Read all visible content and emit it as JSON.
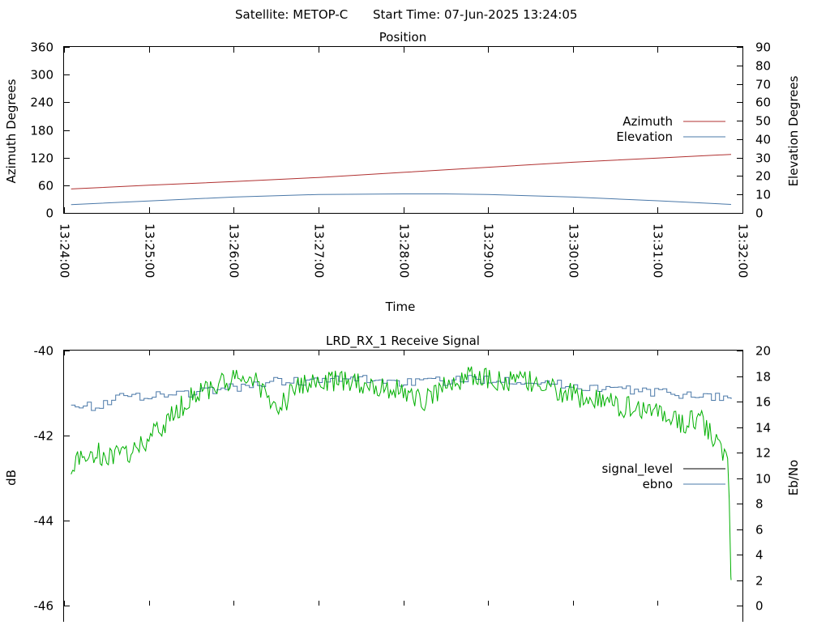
{
  "header": {
    "satellite_label": "Satellite: METOP-C",
    "start_time_label": "Start Time: 07-Jun-2025 13:24:05"
  },
  "chart_data": [
    {
      "type": "line",
      "title": "Position",
      "xlabel": "Time",
      "ylabel": "Azimuth Degrees",
      "y2label": "Elevation Degrees",
      "xlim": [
        "13:24:00",
        "13:32:00"
      ],
      "xticks": [
        "13:24:00",
        "13:25:00",
        "13:26:00",
        "13:27:00",
        "13:28:00",
        "13:29:00",
        "13:30:00",
        "13:31:00",
        "13:32:00"
      ],
      "ylim": [
        0,
        360
      ],
      "yticks": [
        0,
        60,
        120,
        180,
        240,
        300,
        360
      ],
      "y2lim": [
        0,
        90
      ],
      "y2ticks": [
        0,
        10,
        20,
        30,
        40,
        50,
        60,
        70,
        80,
        90
      ],
      "legend_position": "right",
      "series": [
        {
          "name": "Azimuth",
          "axis": "y",
          "color": "#b03030",
          "x": [
            "13:24:05",
            "13:25:00",
            "13:26:00",
            "13:27:00",
            "13:28:00",
            "13:29:00",
            "13:30:00",
            "13:31:00",
            "13:31:52"
          ],
          "values": [
            52,
            60,
            68,
            77,
            88,
            99,
            110,
            119,
            127
          ]
        },
        {
          "name": "Elevation",
          "axis": "y2",
          "color": "#4a78a8",
          "x": [
            "13:24:05",
            "13:25:00",
            "13:26:00",
            "13:27:00",
            "13:28:00",
            "13:28:30",
            "13:29:00",
            "13:30:00",
            "13:31:00",
            "13:31:52"
          ],
          "values": [
            4.5,
            6.5,
            8.6,
            10.0,
            10.3,
            10.3,
            10.0,
            8.6,
            6.6,
            4.6
          ]
        }
      ]
    },
    {
      "type": "line",
      "title": "LRD_RX_1 Receive Signal",
      "ylabel": "dB",
      "y2label": "Eb/No",
      "ylim": [
        -46,
        -40
      ],
      "yticks": [
        -46,
        -44,
        -42,
        -40
      ],
      "y2lim": [
        0,
        20
      ],
      "y2ticks": [
        0,
        2,
        4,
        6,
        8,
        10,
        12,
        14,
        16,
        18,
        20
      ],
      "legend_position": "right",
      "series": [
        {
          "name": "signal_level",
          "axis": "y",
          "color": "#000000",
          "x": [],
          "values": []
        },
        {
          "name": "ebno",
          "axis": "y2",
          "color": "#4a78a8",
          "x": [
            "13:24:05",
            "13:24:20",
            "13:24:35",
            "13:25:00",
            "13:25:30",
            "13:26:00",
            "13:26:30",
            "13:27:00",
            "13:27:30",
            "13:28:00",
            "13:28:30",
            "13:29:00",
            "13:29:30",
            "13:30:00",
            "13:30:30",
            "13:31:00",
            "13:31:30",
            "13:31:52"
          ],
          "values": [
            16.0,
            15.5,
            16.3,
            16.5,
            16.7,
            17.1,
            17.6,
            17.6,
            17.8,
            17.5,
            17.6,
            17.8,
            17.6,
            17.2,
            17.0,
            16.7,
            16.5,
            16.2
          ]
        },
        {
          "name": "",
          "axis": "y2",
          "color": "#00b000",
          "x": [
            "13:24:05",
            "13:24:20",
            "13:24:35",
            "13:24:50",
            "13:25:05",
            "13:25:20",
            "13:25:35",
            "13:26:00",
            "13:26:15",
            "13:26:30",
            "13:26:45",
            "13:27:00",
            "13:27:30",
            "13:28:00",
            "13:28:15",
            "13:28:30",
            "13:28:45",
            "13:29:00",
            "13:29:30",
            "13:30:00",
            "13:30:30",
            "13:31:00",
            "13:31:15",
            "13:31:30",
            "13:31:45",
            "13:31:50",
            "13:31:52"
          ],
          "values": [
            11.0,
            12.0,
            11.6,
            12.2,
            13.5,
            15.3,
            16.8,
            17.6,
            17.9,
            15.2,
            17.1,
            17.6,
            17.5,
            16.8,
            16.0,
            17.3,
            18.0,
            17.7,
            17.5,
            16.5,
            15.7,
            15.3,
            14.3,
            14.6,
            12.2,
            11.0,
            2.0
          ]
        }
      ]
    }
  ]
}
